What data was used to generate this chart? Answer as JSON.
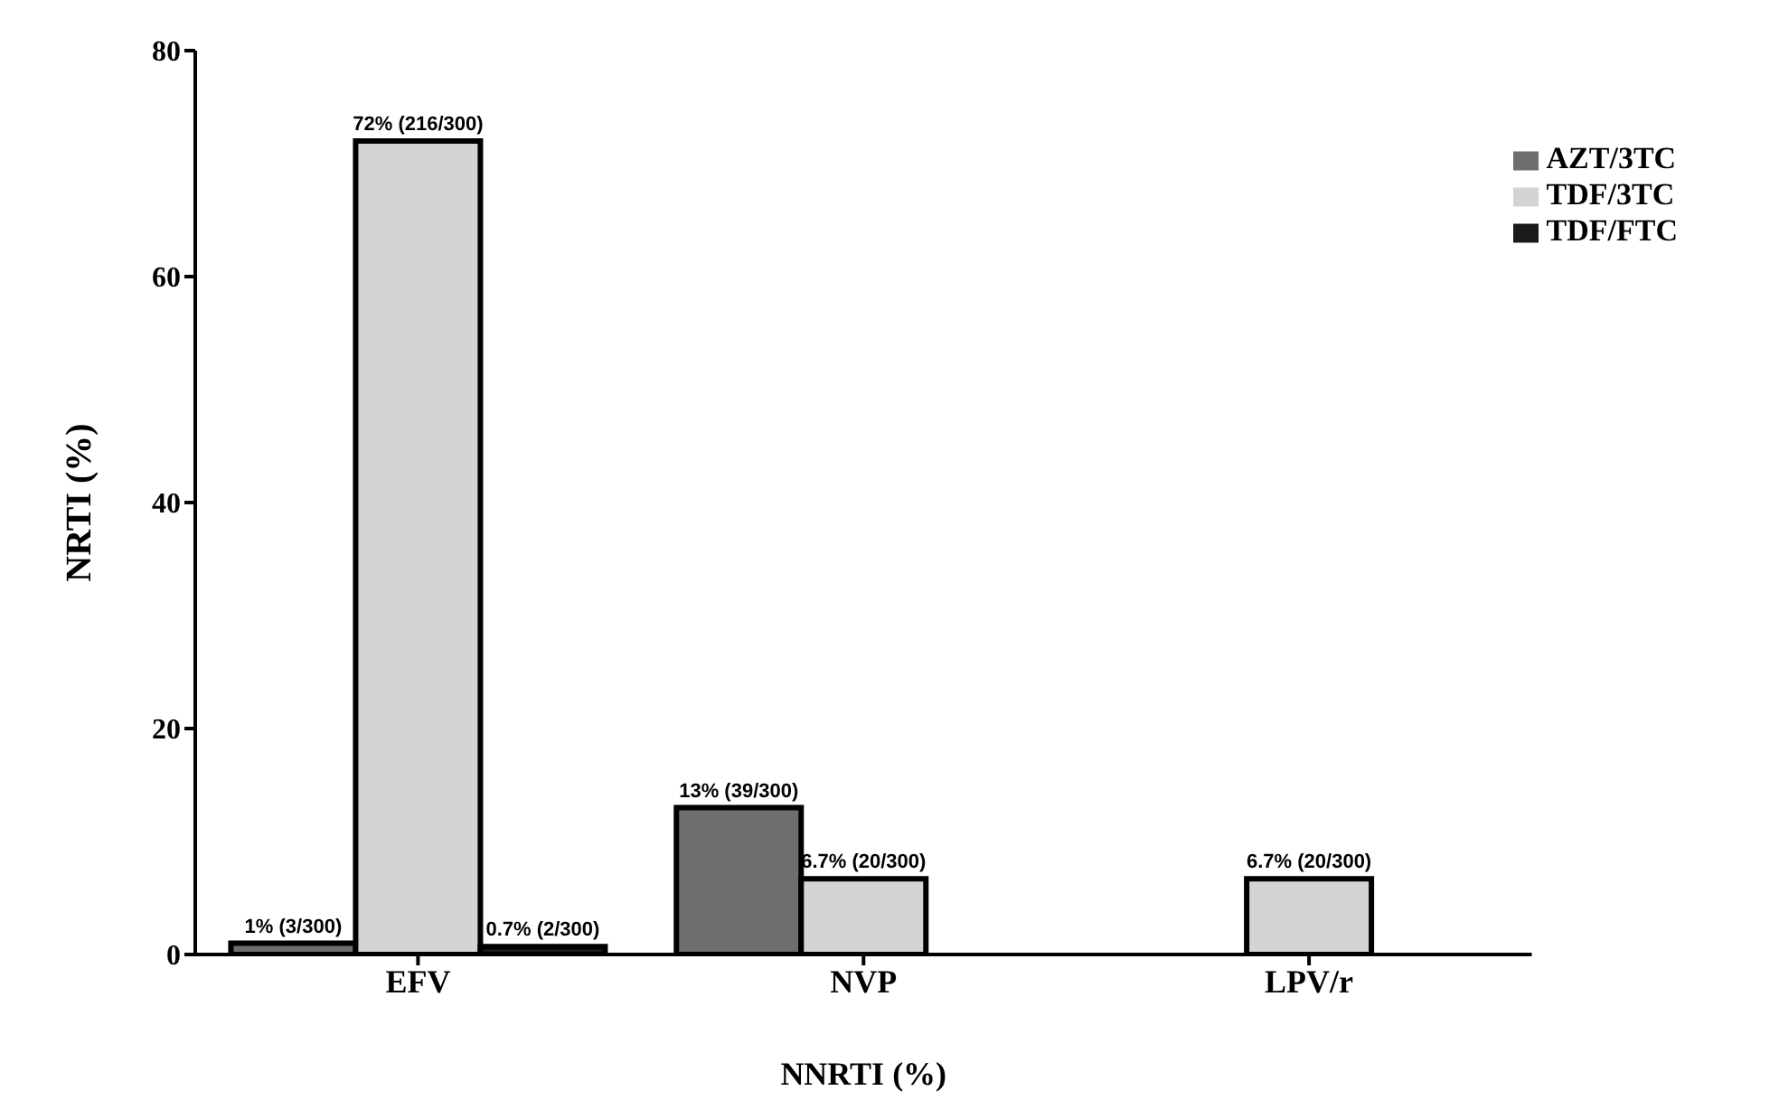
{
  "chart_data": {
    "type": "bar",
    "xlabel": "NNRTI (%)",
    "ylabel": "NRTI (%)",
    "categories": [
      "EFV",
      "NVP",
      "LPV/r"
    ],
    "series": [
      {
        "name": "AZT/3TC",
        "color": "#6e6e6e",
        "values": [
          1,
          13,
          null
        ],
        "value_labels": [
          "1% (3/300)",
          "13% (39/300)",
          null
        ]
      },
      {
        "name": "TDF/3TC",
        "color": "#d4d4d4",
        "values": [
          72,
          6.7,
          6.7
        ],
        "value_labels": [
          "72% (216/300)",
          "6.7% (20/300)",
          "6.7% (20/300)"
        ]
      },
      {
        "name": "TDF/FTC",
        "color": "#1a1a1a",
        "values": [
          0.7,
          null,
          null
        ],
        "value_labels": [
          "0.7% (2/300)",
          null,
          null
        ]
      }
    ],
    "ylim": [
      0,
      80
    ],
    "yticks": [
      0,
      20,
      40,
      60,
      80
    ],
    "legend": "top right"
  }
}
